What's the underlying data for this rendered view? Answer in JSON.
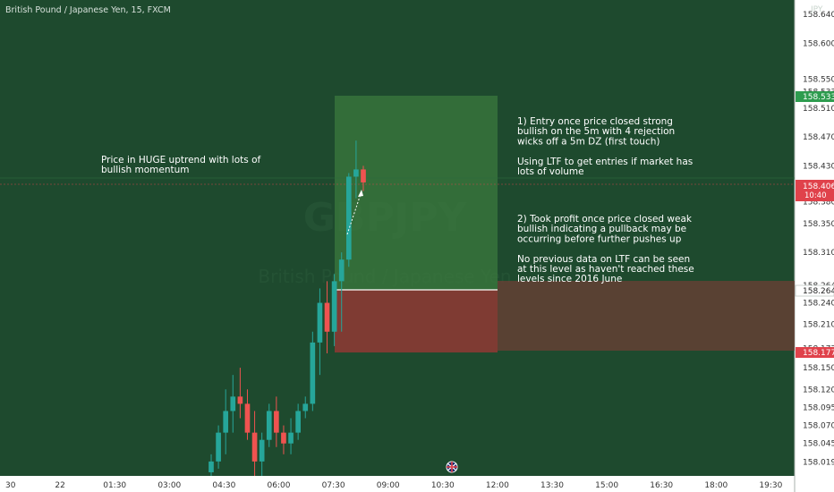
{
  "header": {
    "symbol_title": "British Pound / Japanese Yen, 15, FXCM",
    "currency": "JPY"
  },
  "watermark": {
    "ticker": "GBPJPY",
    "subtitle": "British Pound / Japanese Yen"
  },
  "annotations": {
    "left_note": [
      "Price in HUGE uptrend with lots of",
      "bullish momentum"
    ],
    "right_note_1": [
      "1) Entry once price closed strong",
      "bullish on the 5m with 4 rejection",
      "wicks off a 5m DZ (first touch)",
      "",
      "Using LTF to get entries if market has",
      "lots of volume"
    ],
    "right_note_2": [
      "2) Took profit once price closed weak",
      "bullish indicating a pullback may be",
      "occurring before further pushes up",
      "",
      "No previous data on LTF can be seen",
      "at this level as haven't reached these",
      "levels since 2016 June"
    ]
  },
  "price_badges": {
    "target": {
      "label": "158.533",
      "color": "#2e9c4f"
    },
    "current": {
      "label": "158.406",
      "time": "10:40",
      "color": "#e0424b"
    },
    "entry": {
      "label": "158.264",
      "color": "#ffffff"
    },
    "stop": {
      "label": "158.177",
      "color": "#e0424b"
    }
  },
  "colors": {
    "background": "#1e4a2e",
    "bull": "#26a69a",
    "bear": "#ef5350",
    "profit_zone": "#3b7a3e",
    "loss_zone": "#8a3a34"
  },
  "chart_data": {
    "type": "candlestick",
    "title": "British Pound / Japanese Yen, 15, FXCM",
    "ylim": [
      158.0,
      158.66
    ],
    "y_ticks": [
      "158.019",
      "158.045",
      "158.070",
      "158.095",
      "158.120",
      "158.150",
      "158.177",
      "158.210",
      "158.240",
      "158.264",
      "158.310",
      "158.350",
      "158.380",
      "158.406",
      "158.430",
      "158.470",
      "158.510",
      "158.533",
      "158.550",
      "158.600",
      "158.640"
    ],
    "x_ticks": [
      "30",
      "22",
      "01:30",
      "03:00",
      "04:30",
      "06:00",
      "07:30",
      "09:00",
      "10:30",
      "12:00",
      "13:30",
      "15:00",
      "16:30",
      "18:00",
      "19:30"
    ],
    "candles": [
      {
        "open": 158.005,
        "high": 158.03,
        "low": 158.0,
        "close": 158.02
      },
      {
        "open": 158.02,
        "high": 158.07,
        "low": 158.01,
        "close": 158.06
      },
      {
        "open": 158.06,
        "high": 158.12,
        "low": 158.03,
        "close": 158.09
      },
      {
        "open": 158.09,
        "high": 158.14,
        "low": 158.06,
        "close": 158.11
      },
      {
        "open": 158.11,
        "high": 158.15,
        "low": 158.08,
        "close": 158.1
      },
      {
        "open": 158.1,
        "high": 158.12,
        "low": 158.05,
        "close": 158.06
      },
      {
        "open": 158.06,
        "high": 158.09,
        "low": 158.0,
        "close": 158.02
      },
      {
        "open": 158.02,
        "high": 158.06,
        "low": 158.0,
        "close": 158.05
      },
      {
        "open": 158.05,
        "high": 158.1,
        "low": 158.04,
        "close": 158.09
      },
      {
        "open": 158.09,
        "high": 158.11,
        "low": 158.04,
        "close": 158.06
      },
      {
        "open": 158.06,
        "high": 158.07,
        "low": 158.03,
        "close": 158.045
      },
      {
        "open": 158.045,
        "high": 158.08,
        "low": 158.03,
        "close": 158.06
      },
      {
        "open": 158.06,
        "high": 158.1,
        "low": 158.05,
        "close": 158.09
      },
      {
        "open": 158.09,
        "high": 158.11,
        "low": 158.08,
        "close": 158.1
      },
      {
        "open": 158.1,
        "high": 158.2,
        "low": 158.09,
        "close": 158.185
      },
      {
        "open": 158.185,
        "high": 158.26,
        "low": 158.14,
        "close": 158.24
      },
      {
        "open": 158.24,
        "high": 158.27,
        "low": 158.17,
        "close": 158.2
      },
      {
        "open": 158.2,
        "high": 158.28,
        "low": 158.18,
        "close": 158.27
      },
      {
        "open": 158.27,
        "high": 158.31,
        "low": 158.2,
        "close": 158.3
      },
      {
        "open": 158.3,
        "high": 158.42,
        "low": 158.29,
        "close": 158.415
      },
      {
        "open": 158.415,
        "high": 158.465,
        "low": 158.385,
        "close": 158.425
      },
      {
        "open": 158.425,
        "high": 158.43,
        "low": 158.395,
        "close": 158.407
      }
    ]
  }
}
